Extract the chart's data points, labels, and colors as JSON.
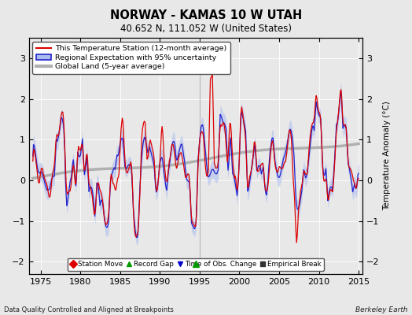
{
  "title": "NORWAY - KAMAS 10 W UTAH",
  "subtitle": "40.652 N, 111.052 W (United States)",
  "ylabel": "Temperature Anomaly (°C)",
  "xlabel_note": "Data Quality Controlled and Aligned at Breakpoints",
  "xlabel_note_right": "Berkeley Earth",
  "ylim": [
    -2.3,
    3.5
  ],
  "xlim": [
    1973.5,
    2015.5
  ],
  "xticks": [
    1975,
    1980,
    1985,
    1990,
    1995,
    2000,
    2005,
    2010,
    2015
  ],
  "yticks": [
    -2,
    -1,
    0,
    1,
    2,
    3
  ],
  "bg_color": "#e8e8e8",
  "plot_bg_color": "#e8e8e8",
  "legend_items": [
    {
      "label": "This Temperature Station (12-month average)",
      "color": "#dd0000",
      "lw": 1.5
    },
    {
      "label": "Regional Expectation with 95% uncertainty",
      "color": "#2222cc",
      "lw": 1.5
    },
    {
      "label": "Global Land (5-year average)",
      "color": "#aaaaaa",
      "lw": 3
    }
  ],
  "marker_legend": [
    {
      "label": "Station Move",
      "marker": "D",
      "color": "#dd0000"
    },
    {
      "label": "Record Gap",
      "marker": "^",
      "color": "#009900"
    },
    {
      "label": "Time of Obs. Change",
      "marker": "v",
      "color": "#0000cc"
    },
    {
      "label": "Empirical Break",
      "marker": "s",
      "color": "#333333"
    }
  ],
  "record_gap_x": 1994.5,
  "record_gap_y": -2.05
}
